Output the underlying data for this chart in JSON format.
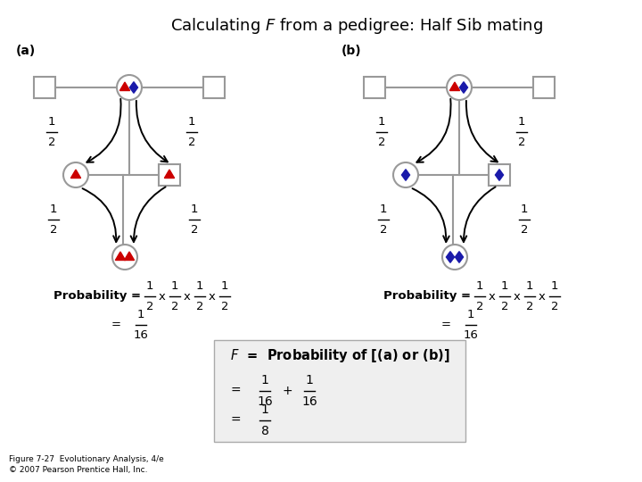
{
  "title": "Calculating $F$ from a pedigree: Half Sib mating",
  "bg_color": "#ffffff",
  "gray": "#999999",
  "red": "#cc0000",
  "blue": "#1a1aaa",
  "label_a": "(a)",
  "label_b": "(b)",
  "caption1": "Figure 7-27  Evolutionary Analysis, 4/e",
  "caption2": "© 2007 Pearson Prentice Hall, Inc."
}
